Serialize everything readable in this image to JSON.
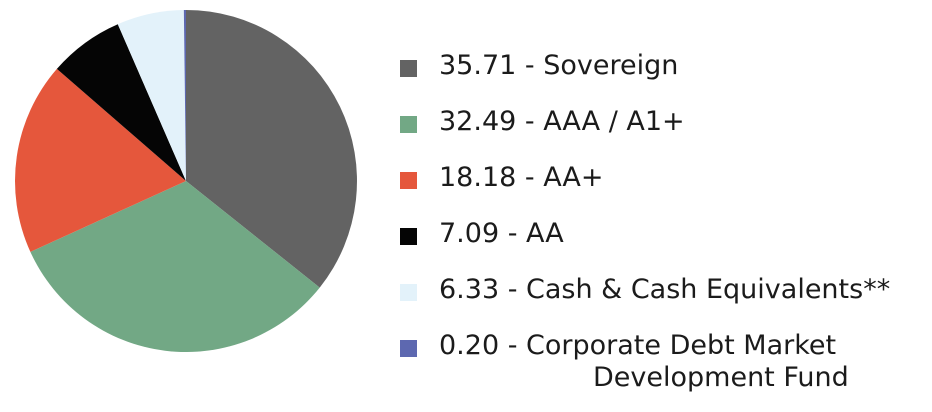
{
  "chart_data": {
    "type": "pie",
    "title": "",
    "slices": [
      {
        "value": 35.71,
        "label": "35.71 - Sovereign",
        "color": "#636363"
      },
      {
        "value": 32.49,
        "label": "32.49 - AAA / A1+",
        "color": "#72a885"
      },
      {
        "value": 18.18,
        "label": "18.18 - AA+",
        "color": "#e5573c"
      },
      {
        "value": 7.09,
        "label": "7.09 - AA",
        "color": "#050505"
      },
      {
        "value": 6.33,
        "label": "6.33 - Cash & Cash Equivalents**",
        "color": "#e3f2fa"
      },
      {
        "value": 0.2,
        "label": "0.20 - Corporate Debt Market",
        "label_line2": "Development Fund",
        "color": "#5d68b0"
      }
    ],
    "legend_position": "right",
    "start_angle": "12 o'clock",
    "direction": "clockwise"
  }
}
